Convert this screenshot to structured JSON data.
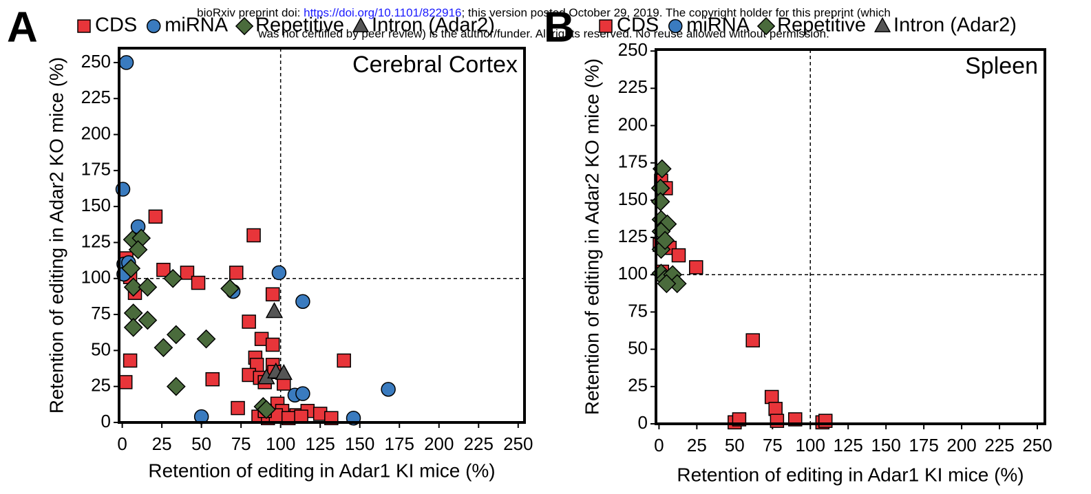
{
  "header": {
    "line1_prefix": "bioRxiv preprint doi: ",
    "link": "https://doi.org/10.1101/822916",
    "line1_suffix": "; this version posted October 29, 2019. The copyright holder for this preprint (which",
    "line2": "was not certified by peer review) is the author/funder. All rights reserved. No reuse allowed without permission."
  },
  "chart_data": [
    {
      "type": "scatter",
      "panel_label": "A",
      "annotation": "Cerebral Cortex",
      "xlabel": "Retention of editing in Adar1 KI mice (%)",
      "ylabel": "Retention of editing in Adar2 KO mice (%)",
      "xlim": [
        -2,
        254
      ],
      "ylim": [
        0,
        260
      ],
      "xticks": [
        0,
        25,
        50,
        75,
        100,
        125,
        150,
        175,
        200,
        225,
        250
      ],
      "yticks": [
        0,
        25,
        50,
        75,
        100,
        125,
        150,
        175,
        200,
        225,
        250
      ],
      "reference_lines": {
        "x": 100,
        "y": 100
      },
      "series": [
        {
          "name": "CDS",
          "color": "#e8353a",
          "marker": "square",
          "x": [
            2.6,
            3.5,
            5,
            8,
            5,
            2,
            21,
            83,
            26,
            41,
            48,
            72,
            95,
            80,
            88,
            95,
            84,
            85,
            80,
            87,
            90,
            95,
            96,
            57,
            73,
            140,
            102,
            98,
            101,
            110,
            117,
            125,
            132,
            86,
            92,
            97,
            105,
            113,
            90
          ],
          "y": [
            114,
            108,
            101,
            90,
            43,
            28,
            143,
            130,
            106,
            104,
            97,
            104,
            89,
            70,
            58,
            54,
            45,
            40,
            33,
            31,
            28,
            40,
            35,
            30,
            10,
            43,
            27,
            13,
            8,
            5,
            8,
            6,
            3,
            4,
            3,
            5,
            3,
            4,
            8
          ]
        },
        {
          "name": "miRNA",
          "color": "#3a7bbf",
          "marker": "circle",
          "x": [
            2.6,
            0.4,
            1,
            1,
            4,
            10,
            70,
            99,
            114,
            109,
            114,
            50,
            146,
            168
          ],
          "y": [
            250,
            162,
            110,
            103,
            111,
            136,
            91,
            104,
            84,
            19,
            20,
            4,
            3,
            23
          ]
        },
        {
          "name": "Repetitive",
          "color": "#4a6b3c",
          "marker": "diamond",
          "x": [
            6.5,
            12,
            10,
            5.5,
            7,
            16,
            32,
            7,
            16,
            7,
            34,
            53,
            26,
            34,
            68,
            89,
            91
          ],
          "y": [
            127,
            128,
            120,
            107,
            94,
            94,
            100,
            76,
            71,
            66,
            61,
            58,
            52,
            25,
            93,
            11,
            9
          ]
        },
        {
          "name": "Intron (Adar2)",
          "color": "#555555",
          "marker": "triangle",
          "x": [
            96,
            91,
            97,
            102
          ],
          "y": [
            77,
            31,
            35,
            34
          ]
        }
      ]
    },
    {
      "type": "scatter",
      "panel_label": "B",
      "annotation": "Spleen",
      "xlabel": "Retention of editing in Adar1 KI mice (%)",
      "ylabel": "Retention of editing in Adar2 KO mice (%)",
      "xlim": [
        -2,
        255
      ],
      "ylim": [
        0,
        251
      ],
      "xticks": [
        0,
        25,
        50,
        75,
        100,
        125,
        150,
        175,
        200,
        225,
        250
      ],
      "yticks": [
        0,
        25,
        50,
        75,
        100,
        125,
        150,
        175,
        200,
        225,
        250
      ],
      "reference_lines": {
        "x": 100,
        "y": 100
      },
      "series": [
        {
          "name": "CDS",
          "color": "#e8353a",
          "marker": "square",
          "x": [
            1.4,
            4.5,
            0.5,
            7,
            13,
            24.5,
            2,
            62,
            74.5,
            77,
            78,
            50,
            53,
            90,
            108,
            110
          ],
          "y": [
            163,
            158,
            120,
            118,
            113,
            105,
            102,
            56,
            18,
            10,
            2,
            1,
            3,
            3,
            1,
            2
          ]
        },
        {
          "name": "miRNA",
          "color": "#3a7bbf",
          "marker": "circle",
          "x": [],
          "y": []
        },
        {
          "name": "Repetitive",
          "color": "#4a6b3c",
          "marker": "diamond",
          "x": [
            2,
            1,
            1,
            1.4,
            5.5,
            1.4,
            1.4,
            4,
            1.4,
            4,
            9,
            12,
            5
          ],
          "y": [
            171,
            158,
            149,
            137,
            134,
            129,
            117,
            123,
            101,
            97,
            100,
            94,
            94
          ]
        },
        {
          "name": "Intron (Adar2)",
          "color": "#555555",
          "marker": "triangle",
          "x": [],
          "y": []
        }
      ]
    }
  ]
}
